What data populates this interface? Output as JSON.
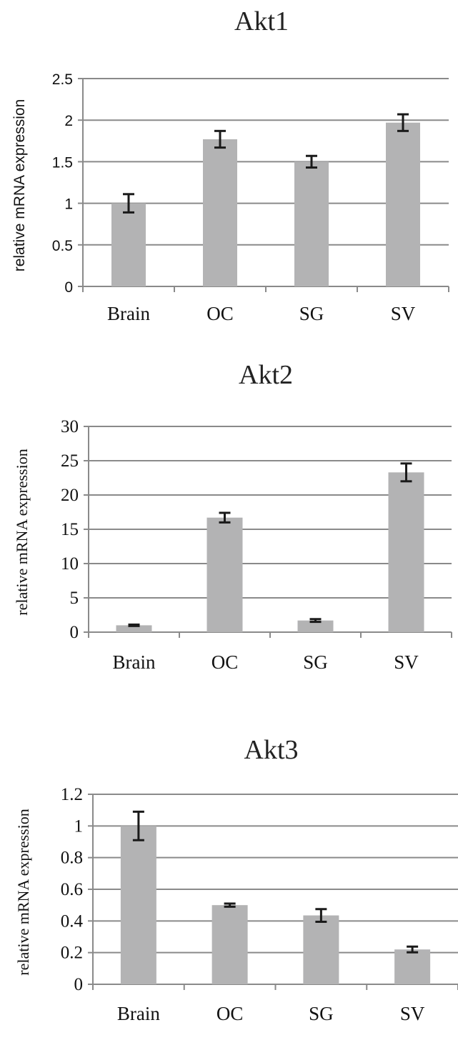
{
  "chart_data": [
    {
      "type": "bar",
      "title": "Akt1",
      "ylabel": "relative mRNA expression",
      "xlabel": "",
      "categories": [
        "Brain",
        "OC",
        "SG",
        "SV"
      ],
      "values": [
        1.0,
        1.77,
        1.5,
        1.97
      ],
      "errors": [
        0.11,
        0.1,
        0.07,
        0.1
      ],
      "ylim": [
        0,
        2.5
      ],
      "yticks": [
        "0",
        "0.5",
        "1",
        "1.5",
        "2",
        "2.5"
      ],
      "grid": true,
      "bar_color": "#b3b3b4"
    },
    {
      "type": "bar",
      "title": "Akt2",
      "ylabel": "relative mRNA expression",
      "xlabel": "",
      "categories": [
        "Brain",
        "OC",
        "SG",
        "SV"
      ],
      "values": [
        1.0,
        16.7,
        1.7,
        23.3
      ],
      "errors": [
        0.1,
        0.7,
        0.2,
        1.3
      ],
      "ylim": [
        0,
        30
      ],
      "yticks": [
        "0",
        "5",
        "10",
        "15",
        "20",
        "25",
        "30"
      ],
      "grid": true,
      "bar_color": "#b3b3b4"
    },
    {
      "type": "bar",
      "title": "Akt3",
      "ylabel": "relative mRNA expression",
      "xlabel": "",
      "categories": [
        "Brain",
        "OC",
        "SG",
        "SV"
      ],
      "values": [
        1.0,
        0.5,
        0.435,
        0.22
      ],
      "errors": [
        0.09,
        0.01,
        0.04,
        0.018
      ],
      "ylim": [
        0,
        1.2
      ],
      "yticks": [
        "0",
        "0.2",
        "0.4",
        "0.6",
        "0.8",
        "1",
        "1.2"
      ],
      "grid": true,
      "bar_color": "#b3b3b4"
    }
  ]
}
